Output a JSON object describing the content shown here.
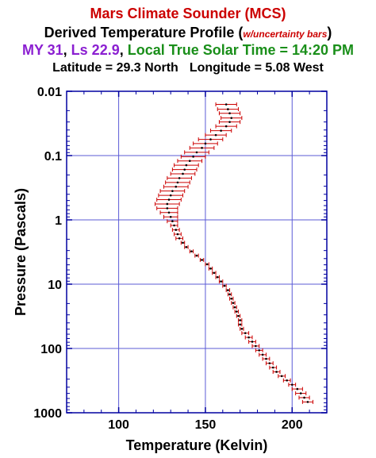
{
  "header": {
    "title": "Mars Climate Sounder (MCS)",
    "subtitle_main": "Derived Temperature Profile (",
    "subtitle_note": "w/uncertainty bars",
    "subtitle_close": ")",
    "my_text": "MY 31",
    "ls_text": "Ls 22.9",
    "lst_text": "Local True Solar Time = 14:20 PM",
    "location": {
      "latitude": "Latitude = 29.3 North",
      "longitude": "Longitude = 5.08 West"
    }
  },
  "colors": {
    "title": "#cc0000",
    "my": "#8b1fd1",
    "ls": "#8b1fd1",
    "lst": "#1a8f1a",
    "grid": "#5b5bd6",
    "frame": "#0000a0",
    "errorbar": "#cc0000",
    "point": "#000000"
  },
  "chart_data": {
    "type": "scatter",
    "xlabel": "Temperature (Kelvin)",
    "ylabel": "Pressure (Pascals)",
    "xlim": [
      70,
      220
    ],
    "ylim": [
      1000,
      0.01
    ],
    "y_scale": "log",
    "y_inverted": true,
    "grid": true,
    "x_ticks": [
      100,
      150,
      200
    ],
    "x_tick_labels": [
      "100",
      "150",
      "200"
    ],
    "y_ticks": [
      0.01,
      0.1,
      1,
      10,
      100,
      1000
    ],
    "y_tick_labels": [
      "0.01",
      "0.1",
      "1",
      "10",
      "100",
      "1000"
    ],
    "series": [
      {
        "pressure": [
          0.016,
          0.019,
          0.022,
          0.026,
          0.03,
          0.035,
          0.041,
          0.048,
          0.056,
          0.065,
          0.076,
          0.089,
          0.104,
          0.121,
          0.141,
          0.165,
          0.192,
          0.224,
          0.262,
          0.305,
          0.356,
          0.416,
          0.485,
          0.566,
          0.66,
          0.77,
          0.9,
          1.05,
          1.22,
          1.43,
          1.67,
          1.94,
          2.27,
          2.65,
          3.09,
          3.6,
          4.2,
          4.9,
          5.72,
          6.67,
          7.78,
          9.08,
          10.6,
          12.4,
          14.4,
          16.8,
          19.6,
          22.9,
          26.7,
          31.2,
          36.4,
          42.4,
          49.5,
          57.7,
          67.3,
          78.5,
          91.6,
          107,
          125,
          145,
          170,
          198,
          231,
          269,
          314,
          366,
          427,
          499,
          582,
          679
        ],
        "temperature": [
          162,
          163,
          164,
          165,
          164,
          162,
          159,
          156,
          153,
          150,
          148,
          145,
          143,
          141,
          139,
          138,
          137,
          135,
          134,
          133,
          131,
          130,
          129,
          128,
          128,
          129,
          130,
          131,
          132,
          133,
          134,
          135,
          137,
          139,
          142,
          145,
          148,
          151,
          153,
          155,
          157,
          159,
          161,
          163,
          164,
          165,
          166,
          167,
          168,
          169,
          170,
          170,
          171,
          173,
          175,
          177,
          179,
          181,
          183,
          185,
          187,
          189,
          191,
          194,
          197,
          200,
          203,
          205,
          207,
          209
        ],
        "uncertainty": [
          6,
          6,
          6,
          6,
          6,
          6,
          6,
          6,
          7,
          7,
          7,
          7,
          7,
          7,
          7,
          7,
          7,
          7,
          7,
          7,
          7,
          7,
          7,
          7,
          6,
          5,
          4,
          3,
          2,
          2,
          2,
          2,
          1,
          1,
          1,
          1,
          1,
          1,
          1,
          1,
          1,
          1,
          1,
          1,
          1,
          1,
          1,
          1,
          1,
          1,
          1,
          1,
          1,
          2,
          2,
          2,
          2,
          2,
          2,
          2,
          2,
          2,
          2,
          2,
          2,
          2,
          3,
          3,
          3,
          3
        ]
      }
    ]
  }
}
